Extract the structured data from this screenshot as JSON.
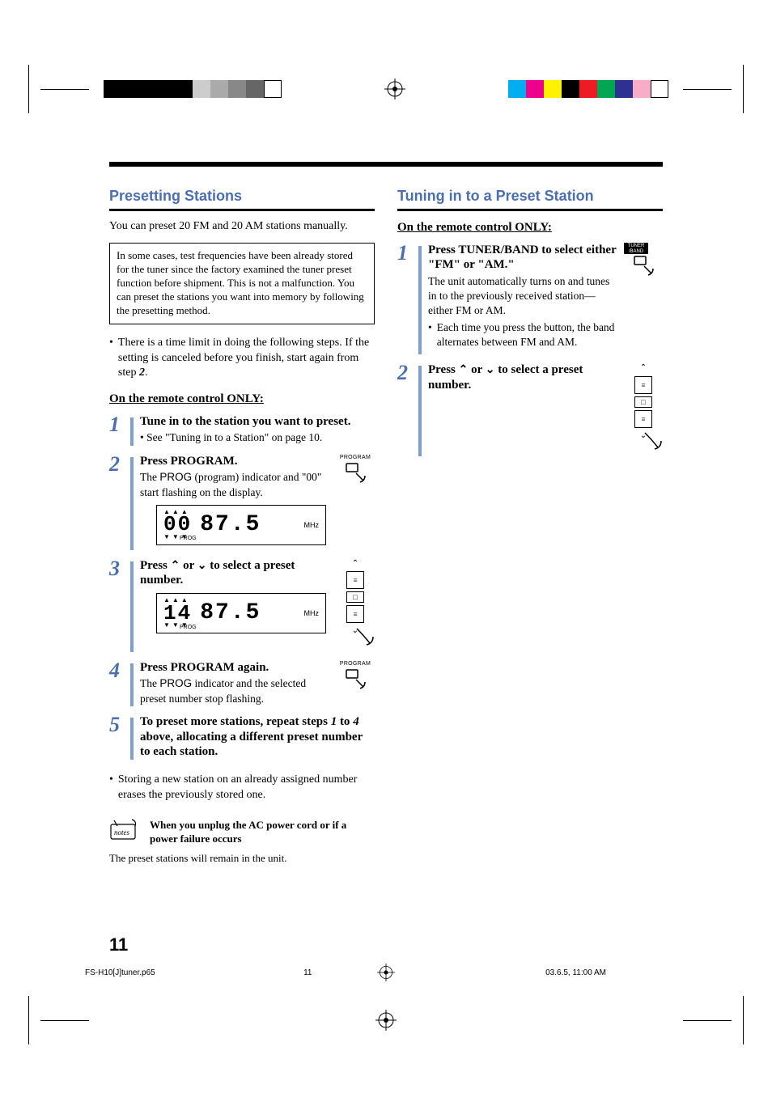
{
  "page_number": "11",
  "hr_color": "#000000",
  "accent_color": "#4a6fb0",
  "step_bar_color": "#7f9fcf",
  "left": {
    "title": "Presetting Stations",
    "intro": "You can preset 20 FM and 20 AM stations manually.",
    "callout": "In some cases, test frequencies have been already stored for the tuner since the factory examined the tuner preset function before shipment. This is not a malfunction. You can preset the stations you want into memory by following the presetting method.",
    "time_limit_bullet": "There is a time limit in doing the following steps. If the setting is canceled before you finish, start again from step ",
    "time_limit_ref": "2",
    "time_limit_period": ".",
    "subhead": "On the remote control ONLY:",
    "step1": {
      "title": "Tune in to the station you want to preset.",
      "sub": "• See \"Tuning in to a Station\" on page 10."
    },
    "step2": {
      "title": "Press PROGRAM.",
      "sub_pre": "The ",
      "sub_prog": "PROG",
      "sub_post": " (program) indicator and \"00\" start flashing on the display.",
      "icon_label": "PROGRAM",
      "display": {
        "preset": "00",
        "freq": "87.5",
        "unit": "MHz",
        "prog": "PROG"
      }
    },
    "step3": {
      "title_pre": "Press ",
      "title_mid": " or ",
      "title_post": " to select a preset number.",
      "display": {
        "preset": "14",
        "freq": "87.5",
        "unit": "MHz",
        "prog": "PROG"
      }
    },
    "step4": {
      "title": "Press PROGRAM again.",
      "sub_pre": "The ",
      "sub_prog": "PROG",
      "sub_post": " indicator and the selected preset number stop flashing.",
      "icon_label": "PROGRAM"
    },
    "step5": {
      "title_pre": "To preset more stations, repeat steps ",
      "ref1": "1",
      "title_mid": " to ",
      "ref4": "4",
      "title_post": " above, allocating a different preset number to each station."
    },
    "storing_bullet": "Storing a new station on an already assigned number erases the previously stored one.",
    "notes": {
      "title": "When you unplug the AC power cord or if a power failure occurs",
      "body": "The preset stations will remain in the unit."
    }
  },
  "right": {
    "title": "Tuning in to a Preset Station",
    "subhead": "On the remote control ONLY:",
    "step1": {
      "title": "Press TUNER/BAND to select either \"FM\" or \"AM.\"",
      "sub": "The unit automatically turns on and tunes in to the previously received station—either FM or AM.",
      "bullet": "Each time you press the button, the band alternates between FM and AM.",
      "icon_top": "TUNER",
      "icon_bot": "/BAND"
    },
    "step2": {
      "title_pre": "Press ",
      "title_mid": " or ",
      "title_post": " to select a preset number."
    }
  },
  "color_bar_left": [
    "#000000",
    "#000000",
    "#000000",
    "#000000",
    "#000000",
    "#cccccc",
    "#aaaaaa",
    "#888888",
    "#666666",
    "#ffffff"
  ],
  "color_bar_right": [
    "#00aeef",
    "#ec008c",
    "#fff200",
    "#000000",
    "#ed1c24",
    "#00a651",
    "#2e3192",
    "#f7adc7",
    "#ffffff"
  ],
  "footer": {
    "file": "FS-H10[J]tuner.p65",
    "page": "11",
    "timestamp": "03.6.5, 11:00 AM"
  }
}
